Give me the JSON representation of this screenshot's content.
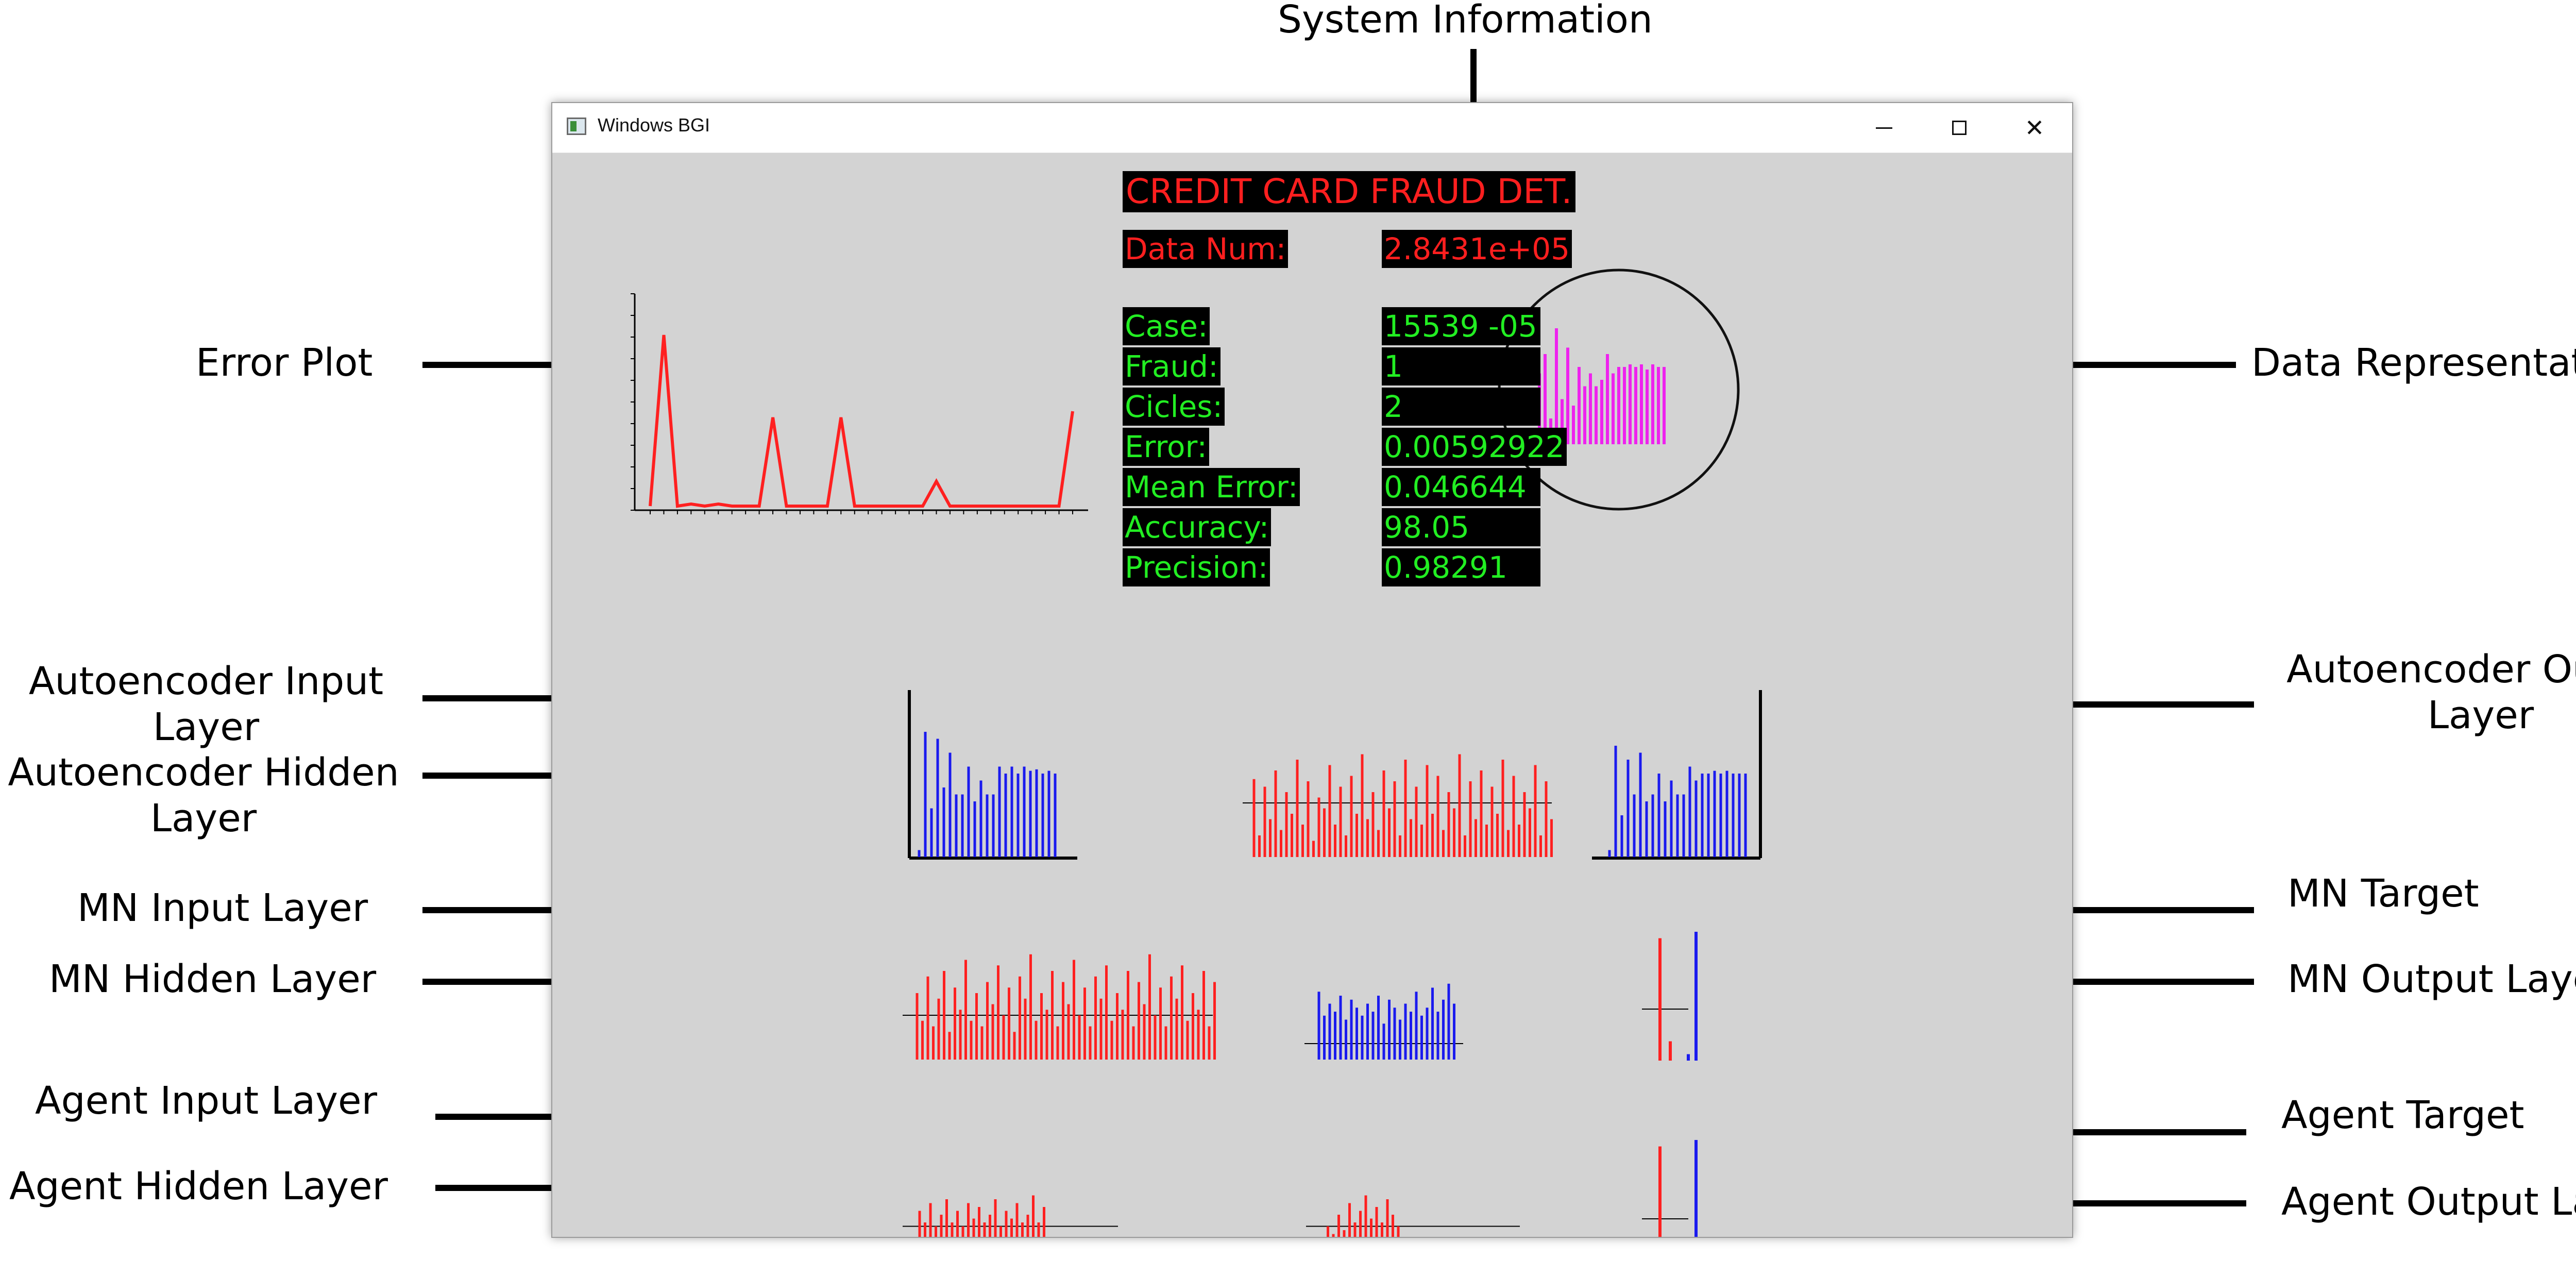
{
  "annotations": {
    "system_information": "System Information",
    "error_plot": "Error Plot",
    "data_representation": "Data Representation",
    "autoencoder_input_layer": "Autoencoder Input\nLayer",
    "autoencoder_hidden_layer": "Autoencoder Hidden\nLayer",
    "autoencoder_output_layer": "Autoencoder Output\nLayer",
    "mn_input_layer": "MN Input Layer",
    "mn_hidden_layer": "MN Hidden Layer",
    "mn_target": "MN Target",
    "mn_output_layer": "MN Output Layer",
    "agent_input_layer": "Agent Input Layer",
    "agent_hidden_layer": "Agent Hidden Layer",
    "agent_target": "Agent Target",
    "agent_output_layer": "Agent Output Layer"
  },
  "window": {
    "title": "Windows BGI",
    "icon": "bgi-app-icon",
    "controls": [
      "minimize-icon",
      "maximize-icon",
      "close-icon"
    ]
  },
  "colors": {
    "canvas_bg": "#d3d3d3",
    "hud_red": "#ff1f1f",
    "hud_green": "#22ee22",
    "plot_red": "#ff2020",
    "plot_blue": "#1a1aee",
    "plot_magenta": "#ee22ee"
  },
  "hud": {
    "title": "CREDIT CARD FRAUD DET.",
    "data_num": {
      "label": "Data Num:",
      "value": "2.8431e+05"
    },
    "stats": [
      {
        "label": "Case:",
        "value": "15539    -05"
      },
      {
        "label": "Fraud:",
        "value": "1"
      },
      {
        "label": "Cicles:",
        "value": "2"
      },
      {
        "label": "Error:",
        "value": "0.00592922"
      },
      {
        "label": "Mean Error:",
        "value": "0.046644"
      },
      {
        "label": "Accuracy:",
        "value": "98.05"
      },
      {
        "label": "Precision:",
        "value": "0.98291"
      }
    ]
  },
  "chart_data": [
    {
      "type": "line",
      "id": "error-plot",
      "series": [
        {
          "values": [
            0.02,
            0.85,
            0.02,
            0.03,
            0.02,
            0.03,
            0.02,
            0.02,
            0.02,
            0.45,
            0.02,
            0.02,
            0.02,
            0.02,
            0.45,
            0.02,
            0.02,
            0.02,
            0.02,
            0.02,
            0.02,
            0.14,
            0.02,
            0.02,
            0.02,
            0.02,
            0.02,
            0.02,
            0.02,
            0.02,
            0.02,
            0.48
          ]
        }
      ],
      "ylim": [
        0,
        1
      ]
    },
    {
      "type": "bar",
      "id": "data-representation",
      "values": [
        0.05,
        0.55,
        0.7,
        0.2,
        0.9,
        0.35,
        0.75,
        0.3,
        0.6,
        0.45,
        0.55,
        0.45,
        0.5,
        0.7,
        0.55,
        0.6,
        0.6,
        0.62,
        0.6,
        0.62,
        0.58,
        0.62,
        0.6,
        0.6
      ]
    },
    {
      "type": "bar",
      "id": "autoencoder-input-layer",
      "values": [
        0.05,
        0.9,
        0.35,
        0.85,
        0.5,
        0.75,
        0.45,
        0.45,
        0.65,
        0.4,
        0.55,
        0.45,
        0.45,
        0.65,
        0.6,
        0.65,
        0.6,
        0.65,
        0.62,
        0.63,
        0.6,
        0.62,
        0.6
      ]
    },
    {
      "type": "bar",
      "id": "autoencoder-hidden-layer",
      "baseline": 0.5,
      "values": [
        0.72,
        0.2,
        0.65,
        0.35,
        0.8,
        0.25,
        0.6,
        0.4,
        0.9,
        0.3,
        0.7,
        0.15,
        0.55,
        0.45,
        0.85,
        0.3,
        0.65,
        0.2,
        0.75,
        0.4,
        0.95,
        0.35,
        0.6,
        0.25,
        0.8,
        0.45,
        0.7,
        0.2,
        0.9,
        0.35,
        0.65,
        0.3,
        0.85,
        0.4,
        0.75,
        0.25,
        0.6,
        0.45,
        0.95,
        0.2,
        0.7,
        0.35,
        0.8,
        0.3,
        0.65,
        0.4,
        0.9,
        0.25,
        0.75,
        0.3,
        0.6,
        0.45,
        0.85,
        0.2,
        0.7,
        0.35
      ]
    },
    {
      "type": "bar",
      "id": "autoencoder-output-layer",
      "values": [
        0.05,
        0.8,
        0.3,
        0.7,
        0.45,
        0.75,
        0.4,
        0.45,
        0.6,
        0.4,
        0.55,
        0.45,
        0.45,
        0.65,
        0.55,
        0.6,
        0.6,
        0.62,
        0.6,
        0.62,
        0.6,
        0.6,
        0.6
      ]
    },
    {
      "type": "bar",
      "id": "mn-input-layer",
      "baseline": 0.4,
      "values": [
        0.6,
        0.35,
        0.75,
        0.3,
        0.55,
        0.8,
        0.25,
        0.65,
        0.45,
        0.9,
        0.35,
        0.6,
        0.3,
        0.7,
        0.5,
        0.85,
        0.4,
        0.65,
        0.25,
        0.75,
        0.55,
        0.95,
        0.35,
        0.6,
        0.45,
        0.8,
        0.3,
        0.7,
        0.5,
        0.9,
        0.4,
        0.65,
        0.3,
        0.75,
        0.55,
        0.85,
        0.35,
        0.6,
        0.45,
        0.8,
        0.3,
        0.7,
        0.5,
        0.95,
        0.4,
        0.65,
        0.3,
        0.75,
        0.55,
        0.85,
        0.35,
        0.6,
        0.45,
        0.8,
        0.3,
        0.7
      ]
    },
    {
      "type": "bar",
      "id": "mn-hidden-layer",
      "baseline": 0.2,
      "values": [
        0.85,
        0.55,
        0.7,
        0.6,
        0.8,
        0.5,
        0.75,
        0.65,
        0.55,
        0.7,
        0.6,
        0.8,
        0.45,
        0.75,
        0.65,
        0.5,
        0.7,
        0.6,
        0.85,
        0.55,
        0.65,
        0.9,
        0.6,
        0.75,
        0.95,
        0.7
      ]
    },
    {
      "type": "bar",
      "id": "mn-target-output",
      "series": [
        {
          "name": "target",
          "values": [
            0.95,
            0.15
          ]
        },
        {
          "name": "output",
          "values": [
            0.05,
            1.0
          ]
        }
      ]
    },
    {
      "type": "bar",
      "id": "agent-input-layer",
      "baseline": 0.55,
      "values": [
        0.75,
        0.6,
        0.85,
        0.55,
        0.7,
        0.9,
        0.6,
        0.75,
        0.55,
        0.85,
        0.65,
        0.8,
        0.6,
        0.7,
        0.9,
        0.55,
        0.75,
        0.65,
        0.85,
        0.6,
        0.7,
        0.95,
        0.6,
        0.8
      ]
    },
    {
      "type": "bar",
      "id": "agent-hidden-layer",
      "baseline": 0.55,
      "values": [
        0.3,
        0.55,
        0.45,
        0.7,
        0.5,
        0.85,
        0.6,
        0.75,
        0.95,
        0.65,
        0.8,
        0.6,
        0.9,
        0.7,
        0.55
      ]
    },
    {
      "type": "bar",
      "id": "agent-target-output",
      "series": [
        {
          "name": "target",
          "values": [
            0.95,
            0.15
          ]
        },
        {
          "name": "output",
          "values": [
            0.05,
            1.0
          ]
        }
      ]
    }
  ]
}
